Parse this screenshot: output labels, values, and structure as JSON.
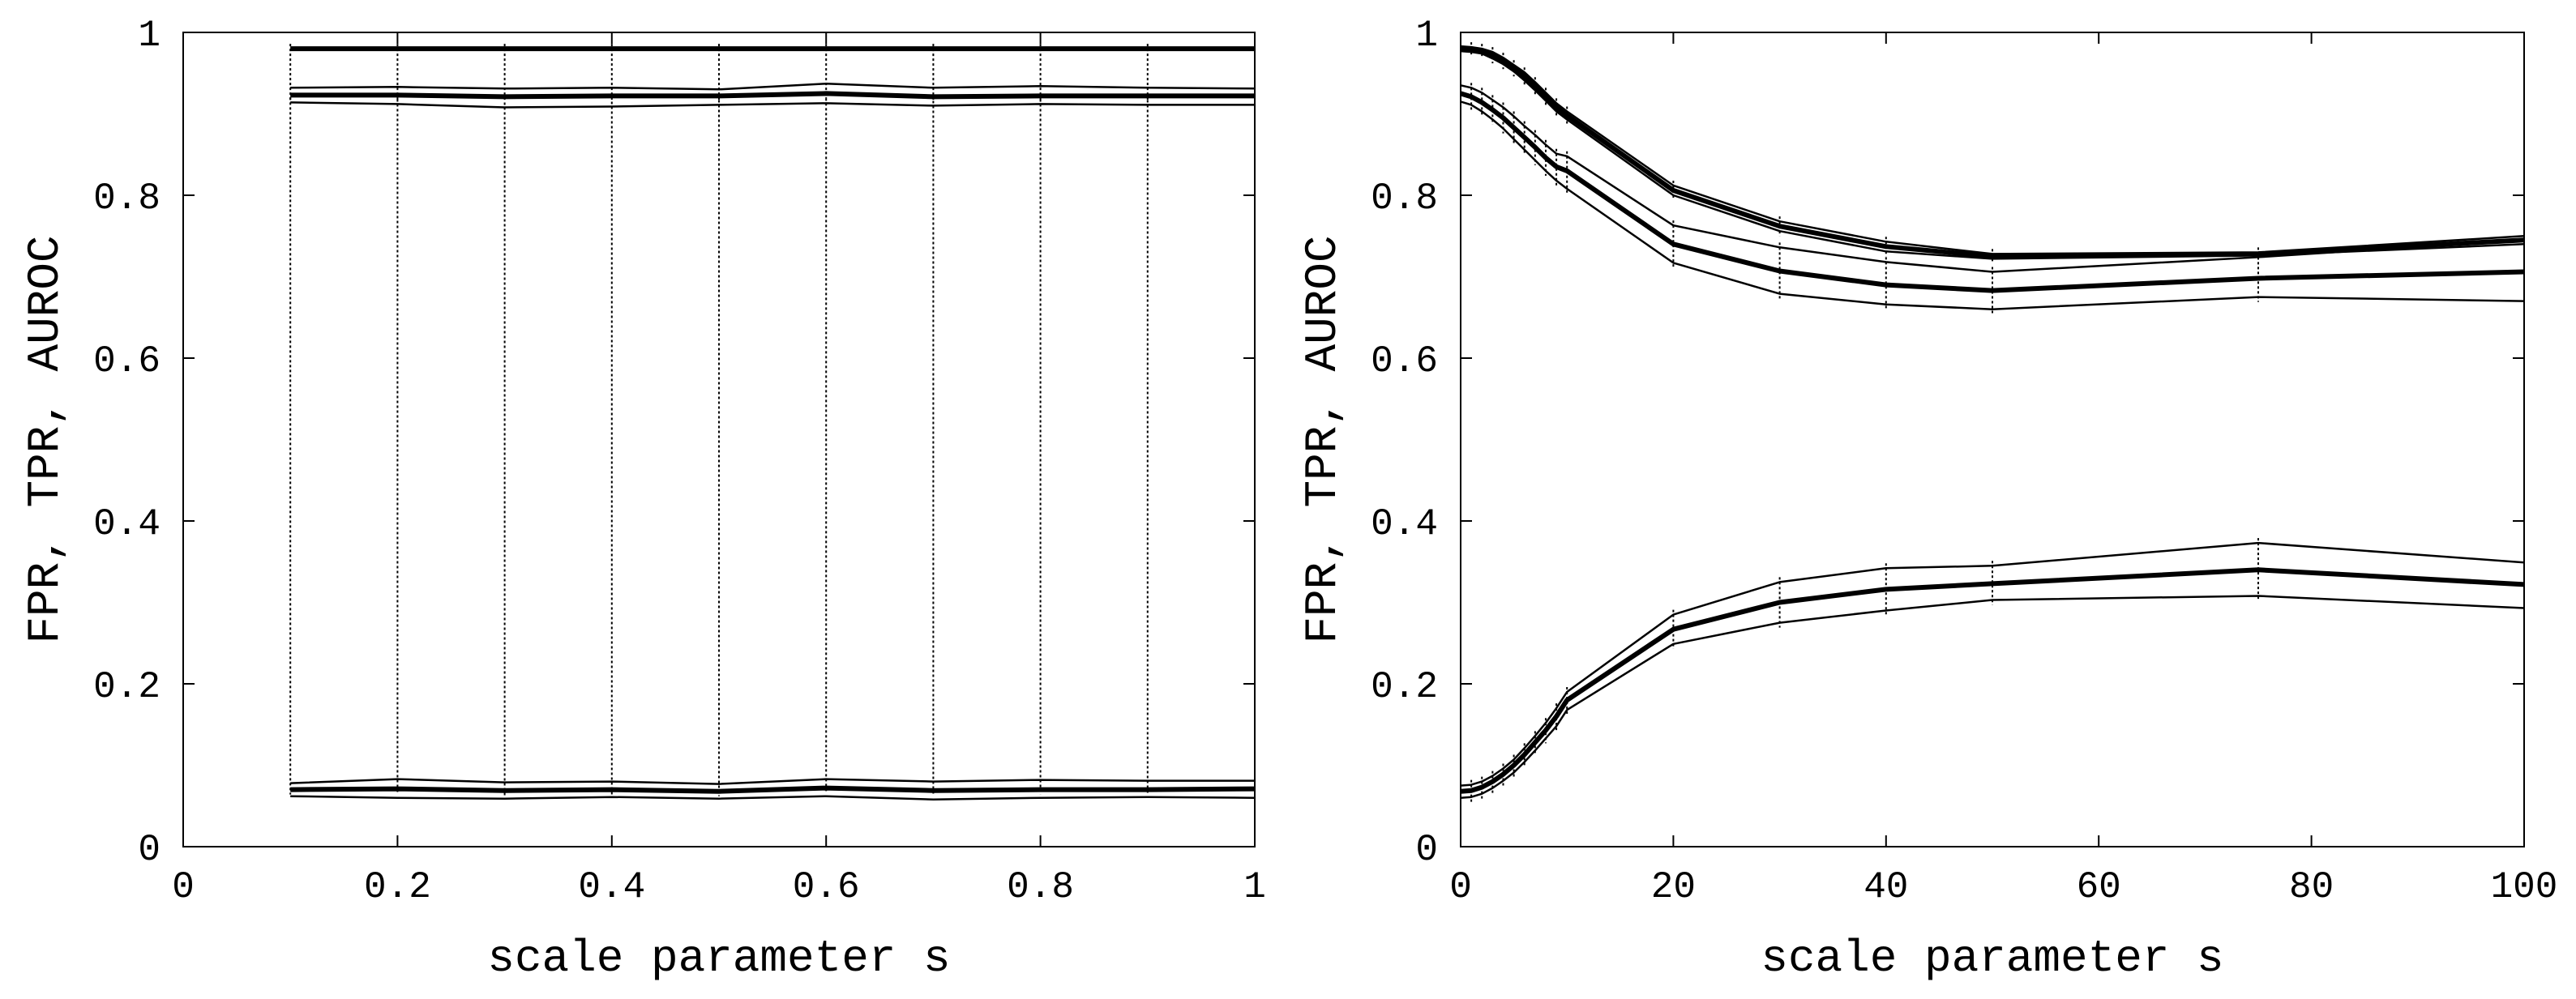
{
  "chart_data": [
    {
      "type": "line",
      "xlabel": "scale parameter s",
      "ylabel": "FPR, TPR, AUROC",
      "xlim": [
        0,
        1
      ],
      "ylim": [
        0,
        1
      ],
      "xticks": [
        "0",
        "0.2",
        "0.4",
        "0.6",
        "0.8",
        "1"
      ],
      "yticks": [
        "0",
        "0.2",
        "0.4",
        "0.6",
        "0.8",
        "1"
      ],
      "grid": false,
      "x": [
        0.1,
        0.2,
        0.3,
        0.4,
        0.5,
        0.6,
        0.7,
        0.8,
        0.9,
        1.0
      ],
      "series": [
        {
          "values": [
            0.98,
            0.98,
            0.98,
            0.98,
            0.98,
            0.98,
            0.98,
            0.98,
            0.98,
            0.98
          ],
          "style": "thick"
        },
        {
          "values": [
            0.932,
            0.933,
            0.931,
            0.932,
            0.93,
            0.937,
            0.932,
            0.934,
            0.932,
            0.931
          ],
          "style": "thin"
        },
        {
          "values": [
            0.923,
            0.923,
            0.921,
            0.922,
            0.922,
            0.925,
            0.921,
            0.922,
            0.922,
            0.922
          ],
          "style": "thick"
        },
        {
          "values": [
            0.914,
            0.912,
            0.908,
            0.909,
            0.911,
            0.913,
            0.91,
            0.912,
            0.911,
            0.911
          ],
          "style": "thin"
        },
        {
          "values": [
            0.078,
            0.083,
            0.079,
            0.08,
            0.077,
            0.083,
            0.08,
            0.082,
            0.081,
            0.081
          ],
          "style": "thin"
        },
        {
          "values": [
            0.07,
            0.071,
            0.069,
            0.07,
            0.068,
            0.072,
            0.069,
            0.07,
            0.07,
            0.071
          ],
          "style": "thick"
        },
        {
          "values": [
            0.062,
            0.06,
            0.059,
            0.061,
            0.059,
            0.062,
            0.058,
            0.06,
            0.061,
            0.06
          ],
          "style": "thin"
        }
      ]
    },
    {
      "type": "line",
      "xlabel": "scale parameter s",
      "ylabel": "FPR, TPR, AUROC",
      "xlim": [
        0,
        100
      ],
      "ylim": [
        0,
        1
      ],
      "xticks": [
        "0",
        "20",
        "40",
        "60",
        "80",
        "100"
      ],
      "yticks": [
        "0",
        "0.2",
        "0.4",
        "0.6",
        "0.8",
        "1"
      ],
      "grid": false,
      "x": [
        0,
        1,
        2,
        3,
        4,
        5,
        6,
        7,
        8,
        9,
        10,
        20,
        30,
        40,
        50,
        75,
        100
      ],
      "series": [
        {
          "values": [
            0.983,
            0.982,
            0.98,
            0.976,
            0.969,
            0.96,
            0.951,
            0.939,
            0.926,
            0.913,
            0.903,
            0.812,
            0.768,
            0.743,
            0.728,
            0.73,
            0.75
          ],
          "style": "thin"
        },
        {
          "values": [
            0.98,
            0.979,
            0.977,
            0.972,
            0.965,
            0.956,
            0.946,
            0.934,
            0.921,
            0.908,
            0.898,
            0.806,
            0.762,
            0.737,
            0.725,
            0.728,
            0.745
          ],
          "style": "thick"
        },
        {
          "values": [
            0.977,
            0.976,
            0.974,
            0.968,
            0.961,
            0.952,
            0.941,
            0.929,
            0.916,
            0.903,
            0.893,
            0.8,
            0.756,
            0.731,
            0.722,
            0.726,
            0.74
          ],
          "style": "thin"
        },
        {
          "values": [
            0.935,
            0.932,
            0.926,
            0.917,
            0.908,
            0.897,
            0.885,
            0.874,
            0.862,
            0.851,
            0.848,
            0.763,
            0.736,
            0.718,
            0.706,
            0.724,
            0.745
          ],
          "style": "thin"
        },
        {
          "values": [
            0.925,
            0.921,
            0.914,
            0.905,
            0.895,
            0.883,
            0.871,
            0.859,
            0.846,
            0.835,
            0.83,
            0.74,
            0.707,
            0.69,
            0.683,
            0.698,
            0.706
          ],
          "style": "thick"
        },
        {
          "values": [
            0.915,
            0.911,
            0.903,
            0.893,
            0.882,
            0.869,
            0.856,
            0.843,
            0.83,
            0.818,
            0.808,
            0.717,
            0.679,
            0.666,
            0.66,
            0.675,
            0.67
          ],
          "style": "thin"
        },
        {
          "values": [
            0.075,
            0.076,
            0.08,
            0.087,
            0.096,
            0.107,
            0.121,
            0.136,
            0.152,
            0.17,
            0.19,
            0.285,
            0.325,
            0.342,
            0.345,
            0.373,
            0.349
          ],
          "style": "thin"
        },
        {
          "values": [
            0.068,
            0.069,
            0.073,
            0.08,
            0.089,
            0.1,
            0.113,
            0.128,
            0.143,
            0.16,
            0.18,
            0.267,
            0.3,
            0.316,
            0.323,
            0.34,
            0.322
          ],
          "style": "thick"
        },
        {
          "values": [
            0.06,
            0.061,
            0.065,
            0.072,
            0.081,
            0.091,
            0.104,
            0.118,
            0.133,
            0.148,
            0.168,
            0.249,
            0.275,
            0.29,
            0.303,
            0.308,
            0.293
          ],
          "style": "thin"
        }
      ]
    }
  ]
}
